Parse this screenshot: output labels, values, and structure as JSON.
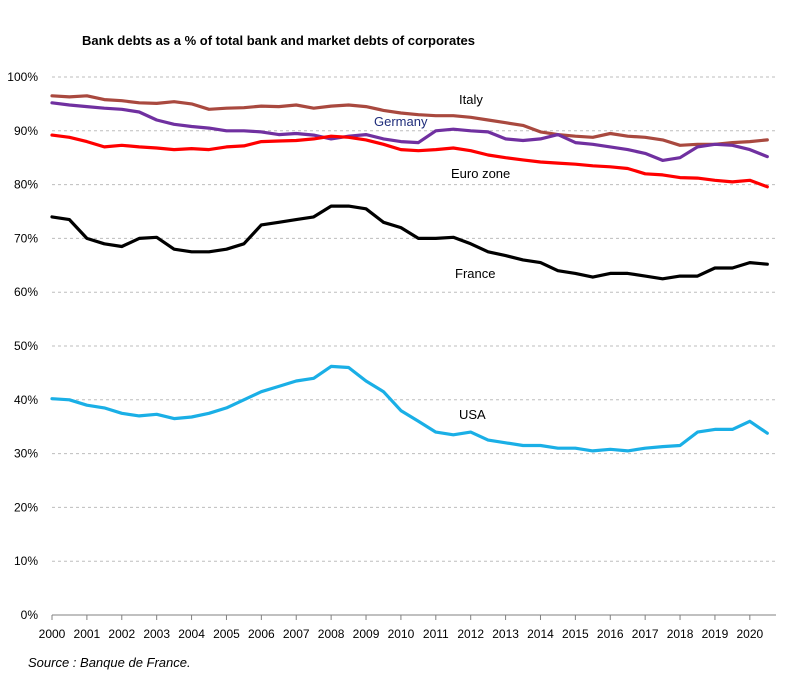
{
  "chart_data": {
    "type": "line",
    "title": "Bank debts as a % of total bank and market  debts of corporates",
    "xlabel": "",
    "ylabel": "",
    "xlim": [
      2000,
      2020.75
    ],
    "ylim": [
      0,
      100
    ],
    "y_ticks": [
      "0%",
      "10%",
      "20%",
      "30%",
      "40%",
      "50%",
      "60%",
      "70%",
      "80%",
      "90%",
      "100%"
    ],
    "x_ticks": [
      "2000",
      "2001",
      "2002",
      "2003",
      "2004",
      "2005",
      "2006",
      "2007",
      "2008",
      "2009",
      "2010",
      "2011",
      "2012",
      "2013",
      "2014",
      "2015",
      "2016",
      "2017",
      "2018",
      "2019",
      "2020"
    ],
    "grid": "horizontal dashed",
    "legend": "inline labels",
    "series": [
      {
        "name": "Italy",
        "color": "#a9493f",
        "x": [
          2000,
          2000.5,
          2001,
          2001.5,
          2002,
          2002.5,
          2003,
          2003.5,
          2004,
          2004.5,
          2005,
          2005.5,
          2006,
          2006.5,
          2007,
          2007.5,
          2008,
          2008.5,
          2009,
          2009.5,
          2010,
          2010.5,
          2011,
          2011.5,
          2012,
          2012.5,
          2013,
          2013.5,
          2014,
          2014.5,
          2015,
          2015.5,
          2016,
          2016.5,
          2017,
          2017.5,
          2018,
          2018.5,
          2019,
          2019.5,
          2020,
          2020.5
        ],
        "y": [
          96.5,
          96.3,
          96.5,
          95.8,
          95.6,
          95.2,
          95.1,
          95.4,
          95.0,
          94.0,
          94.2,
          94.3,
          94.6,
          94.5,
          94.8,
          94.2,
          94.6,
          94.8,
          94.5,
          93.8,
          93.3,
          93.0,
          92.8,
          92.8,
          92.5,
          92.0,
          91.5,
          91.0,
          89.8,
          89.3,
          89.0,
          88.8,
          89.5,
          89.0,
          88.8,
          88.3,
          87.3,
          87.5,
          87.5,
          87.8,
          88.0,
          88.3
        ]
      },
      {
        "name": "Germany",
        "color": "#7030a0",
        "label_color": "#1f2d7b",
        "x": [
          2000,
          2000.5,
          2001,
          2001.5,
          2002,
          2002.5,
          2003,
          2003.5,
          2004,
          2004.5,
          2005,
          2005.5,
          2006,
          2006.5,
          2007,
          2007.5,
          2008,
          2008.5,
          2009,
          2009.5,
          2010,
          2010.5,
          2011,
          2011.5,
          2012,
          2012.5,
          2013,
          2013.5,
          2014,
          2014.5,
          2015,
          2015.5,
          2016,
          2016.5,
          2017,
          2017.5,
          2018,
          2018.5,
          2019,
          2019.5,
          2020,
          2020.5
        ],
        "y": [
          95.2,
          94.8,
          94.5,
          94.2,
          94.0,
          93.5,
          92.0,
          91.2,
          90.8,
          90.5,
          90.0,
          90.0,
          89.8,
          89.3,
          89.5,
          89.2,
          88.5,
          89.0,
          89.3,
          88.5,
          88.0,
          87.8,
          90.0,
          90.3,
          90.0,
          89.8,
          88.5,
          88.2,
          88.5,
          89.3,
          87.8,
          87.5,
          87.0,
          86.5,
          85.8,
          84.5,
          85.0,
          87.0,
          87.5,
          87.3,
          86.5,
          85.2
        ]
      },
      {
        "name": "Euro zone",
        "color": "#ff0000",
        "x": [
          2000,
          2000.5,
          2001,
          2001.5,
          2002,
          2002.5,
          2003,
          2003.5,
          2004,
          2004.5,
          2005,
          2005.5,
          2006,
          2006.5,
          2007,
          2007.5,
          2008,
          2008.5,
          2009,
          2009.5,
          2010,
          2010.5,
          2011,
          2011.5,
          2012,
          2012.5,
          2013,
          2013.5,
          2014,
          2014.5,
          2015,
          2015.5,
          2016,
          2016.5,
          2017,
          2017.5,
          2018,
          2018.5,
          2019,
          2019.5,
          2020,
          2020.5
        ],
        "y": [
          89.2,
          88.8,
          88.0,
          87.0,
          87.3,
          87.0,
          86.8,
          86.5,
          86.7,
          86.5,
          87.0,
          87.2,
          88.0,
          88.1,
          88.2,
          88.5,
          89.0,
          88.8,
          88.3,
          87.5,
          86.5,
          86.3,
          86.5,
          86.8,
          86.3,
          85.5,
          85.0,
          84.6,
          84.2,
          84.0,
          83.8,
          83.5,
          83.3,
          83.0,
          82.0,
          81.8,
          81.3,
          81.2,
          80.8,
          80.5,
          80.8,
          79.6
        ]
      },
      {
        "name": "France",
        "color": "#000000",
        "x": [
          2000,
          2000.5,
          2001,
          2001.5,
          2002,
          2002.5,
          2003,
          2003.5,
          2004,
          2004.5,
          2005,
          2005.5,
          2006,
          2006.5,
          2007,
          2007.5,
          2008,
          2008.5,
          2009,
          2009.5,
          2010,
          2010.5,
          2011,
          2011.5,
          2012,
          2012.5,
          2013,
          2013.5,
          2014,
          2014.5,
          2015,
          2015.5,
          2016,
          2016.5,
          2017,
          2017.5,
          2018,
          2018.5,
          2019,
          2019.5,
          2020,
          2020.5
        ],
        "y": [
          74.0,
          73.5,
          70.0,
          69.0,
          68.5,
          70.0,
          70.2,
          68.0,
          67.5,
          67.5,
          68.0,
          69.0,
          72.5,
          73.0,
          73.5,
          74.0,
          76.0,
          76.0,
          75.5,
          73.0,
          72.0,
          70.0,
          70.0,
          70.2,
          69.0,
          67.5,
          66.8,
          66.0,
          65.5,
          64.0,
          63.5,
          62.8,
          63.5,
          63.5,
          63.0,
          62.5,
          63.0,
          63.0,
          64.5,
          64.5,
          65.5,
          65.2
        ]
      },
      {
        "name": "USA",
        "color": "#1aafe6",
        "x": [
          2000,
          2000.5,
          2001,
          2001.5,
          2002,
          2002.5,
          2003,
          2003.5,
          2004,
          2004.5,
          2005,
          2005.5,
          2006,
          2006.5,
          2007,
          2007.5,
          2008,
          2008.5,
          2009,
          2009.5,
          2010,
          2010.5,
          2011,
          2011.5,
          2012,
          2012.5,
          2013,
          2013.5,
          2014,
          2014.5,
          2015,
          2015.5,
          2016,
          2016.5,
          2017,
          2017.5,
          2018,
          2018.5,
          2019,
          2019.5,
          2020,
          2020.5
        ],
        "y": [
          40.2,
          40.0,
          39.0,
          38.5,
          37.5,
          37.0,
          37.3,
          36.5,
          36.8,
          37.5,
          38.5,
          40.0,
          41.5,
          42.5,
          43.5,
          44.0,
          46.2,
          46.0,
          43.5,
          41.5,
          38.0,
          36.0,
          34.0,
          33.5,
          34.0,
          32.5,
          32.0,
          31.5,
          31.5,
          31.0,
          31.0,
          30.5,
          30.8,
          30.5,
          31.0,
          31.3,
          31.5,
          34.0,
          34.5,
          34.5,
          36.0,
          33.8
        ]
      }
    ],
    "labels": [
      "Italy",
      "Germany",
      "Euro zone",
      "France",
      "USA"
    ]
  },
  "source": "Source : Banque de France."
}
